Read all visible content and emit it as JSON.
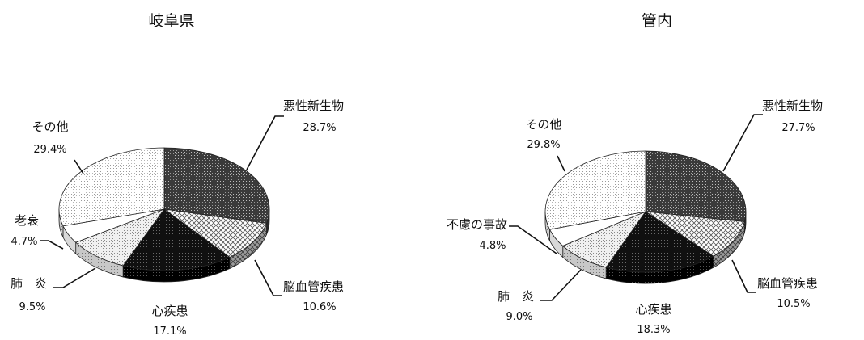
{
  "chart_data": [
    {
      "type": "pie",
      "title": "岐阜県",
      "slices": [
        {
          "label": "悪性新生物",
          "value": 28.7,
          "display": "28.7%",
          "pattern": "dark"
        },
        {
          "label": "脳血管疾患",
          "value": 10.6,
          "display": "10.6%",
          "pattern": "cross"
        },
        {
          "label": "心疾患",
          "value": 17.1,
          "display": "17.1%",
          "pattern": "black"
        },
        {
          "label": "肺　炎",
          "value": 9.5,
          "display": "9.5%",
          "pattern": "light"
        },
        {
          "label": "老衰",
          "value": 4.7,
          "display": "4.7%",
          "pattern": "white"
        },
        {
          "label": "その他",
          "value": 29.4,
          "display": "29.4%",
          "pattern": "dots"
        }
      ]
    },
    {
      "type": "pie",
      "title": "管内",
      "slices": [
        {
          "label": "悪性新生物",
          "value": 27.7,
          "display": "27.7%",
          "pattern": "dark"
        },
        {
          "label": "脳血管疾患",
          "value": 10.5,
          "display": "10.5%",
          "pattern": "cross"
        },
        {
          "label": "心疾患",
          "value": 18.3,
          "display": "18.3%",
          "pattern": "black"
        },
        {
          "label": "肺　炎",
          "value": 9.0,
          "display": "9.0%",
          "pattern": "light"
        },
        {
          "label": "不慮の事故",
          "value": 4.8,
          "display": "4.8%",
          "pattern": "white"
        },
        {
          "label": "その他",
          "value": 29.8,
          "display": "29.8%",
          "pattern": "dots"
        }
      ]
    }
  ]
}
